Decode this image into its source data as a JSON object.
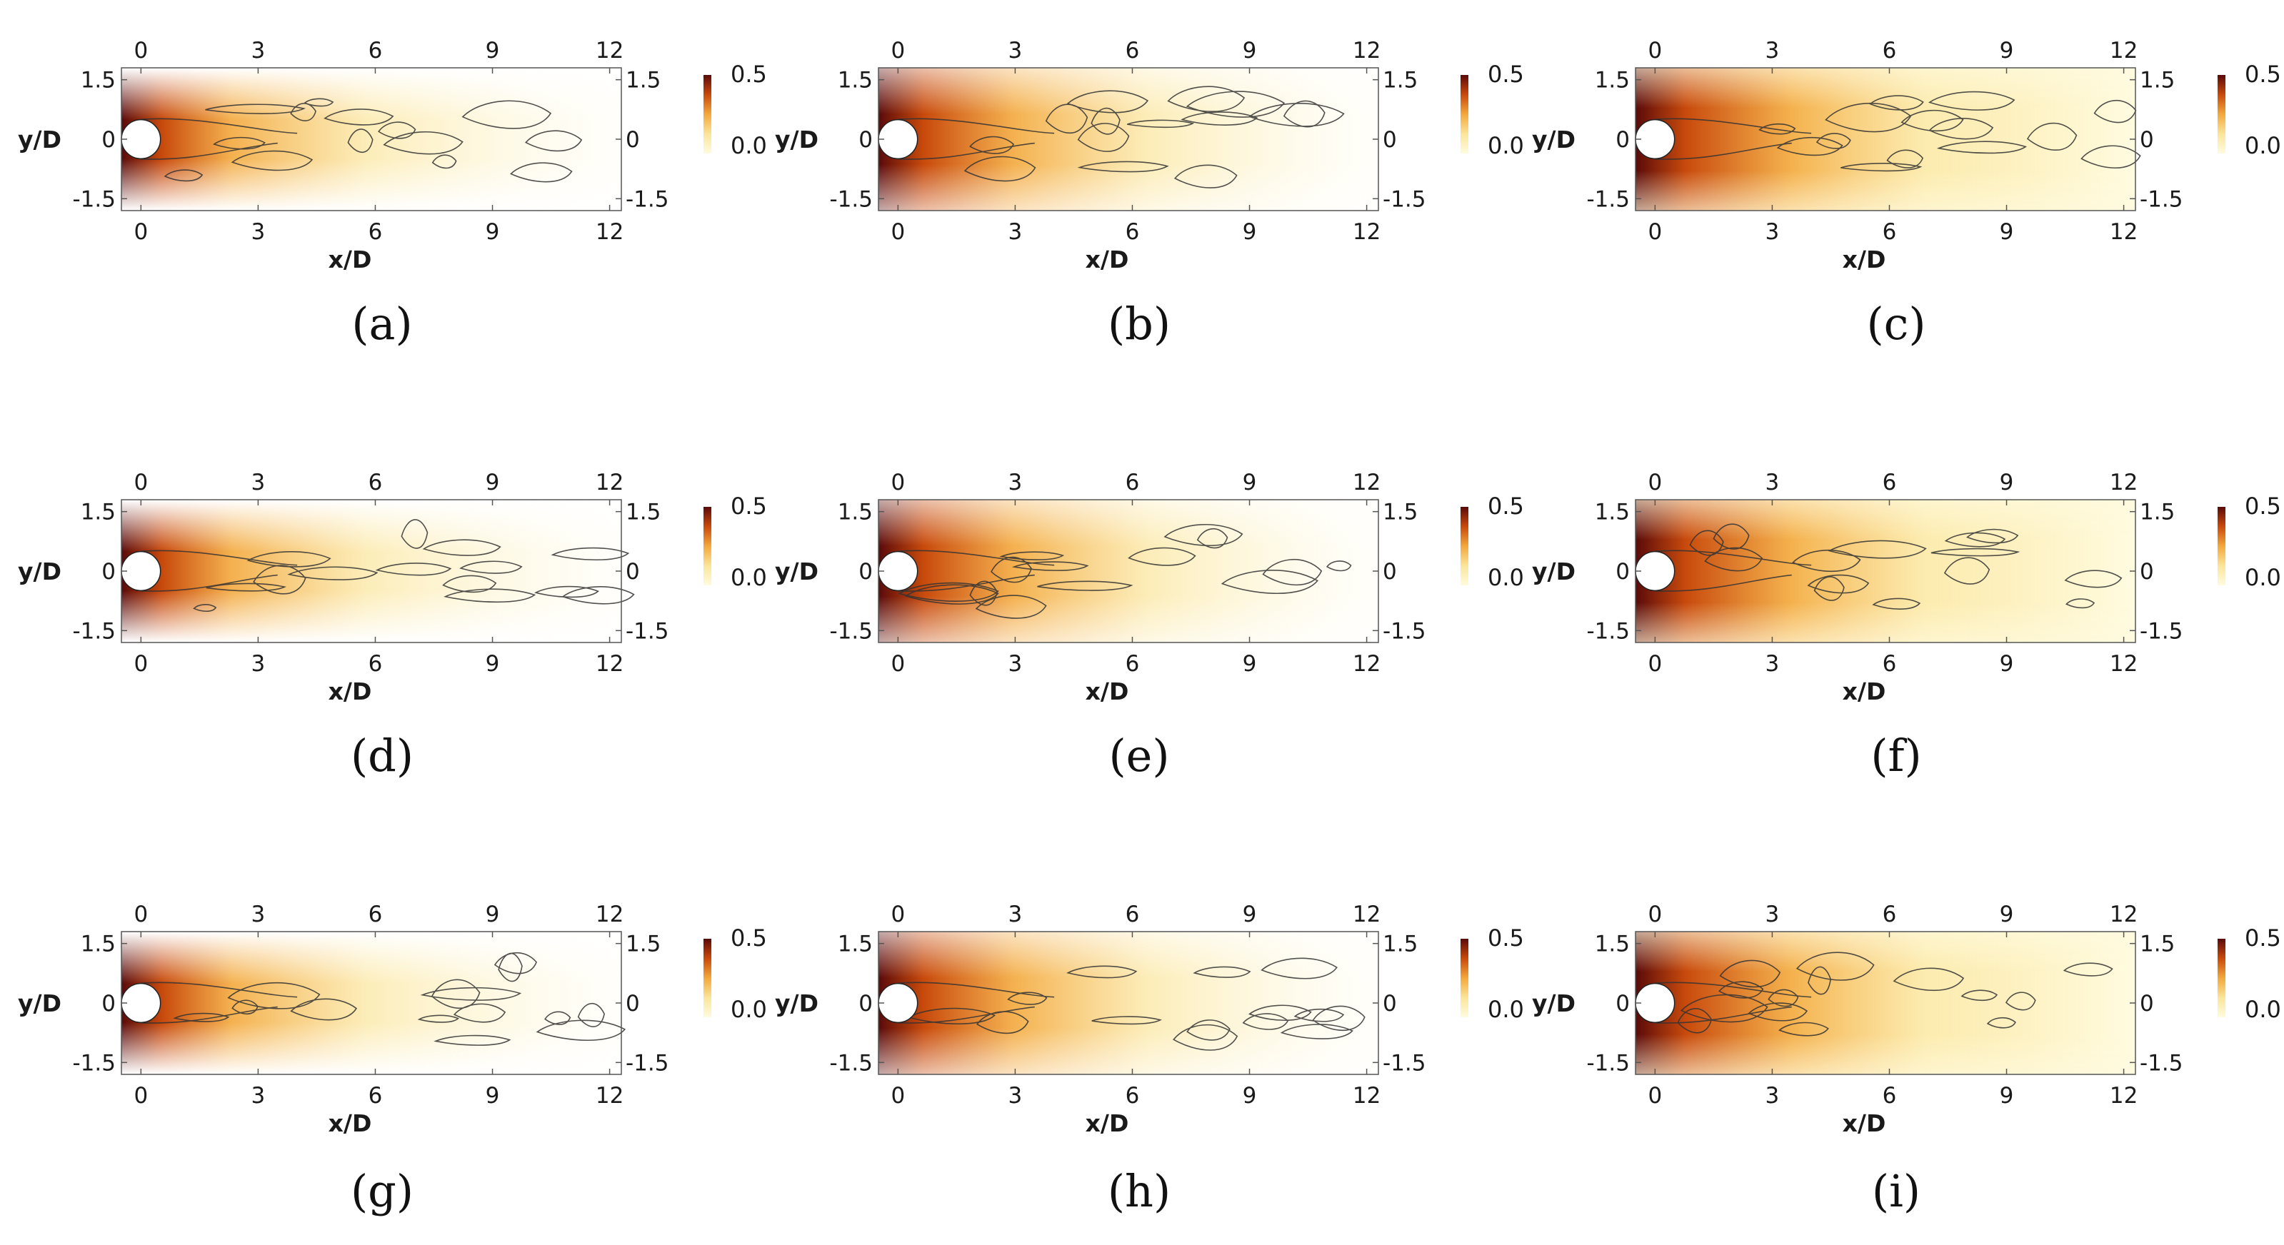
{
  "figure": {
    "panels": [
      {
        "label": "(a)",
        "density": 0.55,
        "decay": 0.8,
        "contours": 1
      },
      {
        "label": "(b)",
        "density": 0.75,
        "decay": 0.55,
        "contours": 2
      },
      {
        "label": "(c)",
        "density": 1.0,
        "decay": 0.35,
        "contours": 3
      },
      {
        "label": "(d)",
        "density": 0.55,
        "decay": 0.8,
        "contours": 4
      },
      {
        "label": "(e)",
        "density": 0.75,
        "decay": 0.55,
        "contours": 5
      },
      {
        "label": "(f)",
        "density": 1.0,
        "decay": 0.35,
        "contours": 6
      },
      {
        "label": "(g)",
        "density": 0.55,
        "decay": 0.8,
        "contours": 7
      },
      {
        "label": "(h)",
        "density": 0.75,
        "decay": 0.55,
        "contours": 8
      },
      {
        "label": "(i)",
        "density": 1.0,
        "decay": 0.35,
        "contours": 9
      }
    ],
    "x_axis": {
      "label": "x/D",
      "ticks": [
        "0",
        "3",
        "6",
        "9",
        "12"
      ],
      "range": [
        -0.5,
        12.3
      ]
    },
    "y_axis": {
      "label": "y/D",
      "ticks": [
        "1.5",
        "0",
        "-1.5"
      ],
      "range": [
        -1.8,
        1.8
      ]
    },
    "colorbar": {
      "max_label": "0.5",
      "min_label": "0.0",
      "colors": [
        "#fffbe0",
        "#fbe59a",
        "#f3a83c",
        "#c84a0c",
        "#5a0a0a"
      ]
    }
  }
}
